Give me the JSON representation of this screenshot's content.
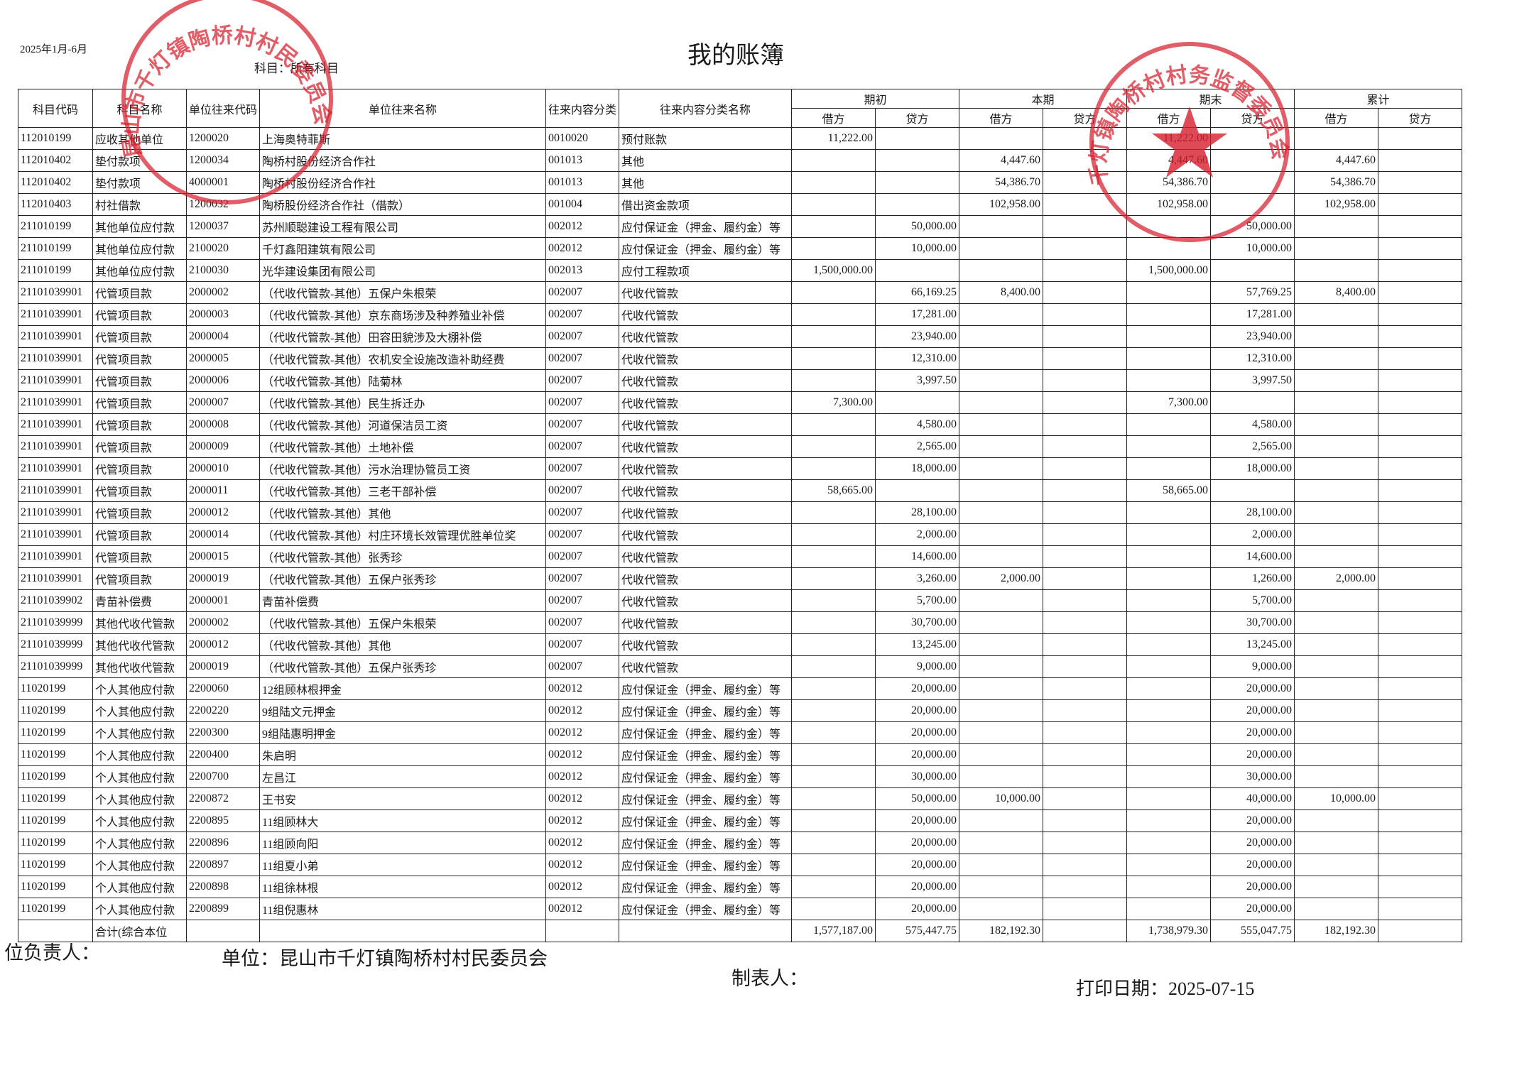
{
  "header": {
    "date_range": "2025年1月-6月",
    "title": "我的账簿",
    "subject": "科目：所有科目"
  },
  "table": {
    "columns": [
      "科目代码",
      "科目名称",
      "单位往来代码",
      "单位往来名称",
      "往来内容分类",
      "往来内容分类名称"
    ],
    "groups": [
      "期初",
      "本期",
      "期末",
      "累计"
    ],
    "sub": [
      "借方",
      "贷方"
    ],
    "rows": [
      {
        "code": "112010199",
        "subject": "应收其他单位",
        "unit_code": "1200020",
        "unit_name": "上海奥特菲斯",
        "cat_code": "0010020",
        "cat_name": "预付账款",
        "open_dr": "11,222.00",
        "close_dr": "11,222.00"
      },
      {
        "code": "112010402",
        "subject": "垫付款项",
        "unit_code": "1200034",
        "unit_name": "陶桥村股份经济合作社",
        "cat_code": "001013",
        "cat_name": "其他",
        "period_dr": "4,447.60",
        "close_dr": "4,447.60",
        "cum_dr": "4,447.60"
      },
      {
        "code": "112010402",
        "subject": "垫付款项",
        "unit_code": "4000001",
        "unit_name": "陶桥村股份经济合作社",
        "cat_code": "001013",
        "cat_name": "其他",
        "period_dr": "54,386.70",
        "close_dr": "54,386.70",
        "cum_dr": "54,386.70"
      },
      {
        "code": "112010403",
        "subject": "村社借款",
        "unit_code": "1200032",
        "unit_name": "陶桥股份经济合作社（借款）",
        "cat_code": "001004",
        "cat_name": "借出资金款项",
        "period_dr": "102,958.00",
        "close_dr": "102,958.00",
        "cum_dr": "102,958.00"
      },
      {
        "code": "211010199",
        "subject": "其他单位应付款",
        "unit_code": "1200037",
        "unit_name": "苏州顺聪建设工程有限公司",
        "cat_code": "002012",
        "cat_name": "应付保证金（押金、履约金）等",
        "open_cr": "50,000.00",
        "close_cr": "50,000.00"
      },
      {
        "code": "211010199",
        "subject": "其他单位应付款",
        "unit_code": "2100020",
        "unit_name": "千灯鑫阳建筑有限公司",
        "cat_code": "002012",
        "cat_name": "应付保证金（押金、履约金）等",
        "open_cr": "10,000.00",
        "close_cr": "10,000.00"
      },
      {
        "code": "211010199",
        "subject": "其他单位应付款",
        "unit_code": "2100030",
        "unit_name": "光华建设集团有限公司",
        "cat_code": "002013",
        "cat_name": "应付工程款项",
        "open_dr": "1,500,000.00",
        "close_dr": "1,500,000.00"
      },
      {
        "code": "21101039901",
        "subject": "代管项目款",
        "unit_code": "2000002",
        "unit_name": "（代收代管款-其他）五保户朱根荣",
        "cat_code": "002007",
        "cat_name": "代收代管款",
        "open_cr": "66,169.25",
        "period_dr": "8,400.00",
        "close_cr": "57,769.25",
        "cum_dr": "8,400.00"
      },
      {
        "code": "21101039901",
        "subject": "代管项目款",
        "unit_code": "2000003",
        "unit_name": "（代收代管款-其他）京东商场涉及种养殖业补偿",
        "cat_code": "002007",
        "cat_name": "代收代管款",
        "open_cr": "17,281.00",
        "close_cr": "17,281.00"
      },
      {
        "code": "21101039901",
        "subject": "代管项目款",
        "unit_code": "2000004",
        "unit_name": "（代收代管款-其他）田容田貌涉及大棚补偿",
        "cat_code": "002007",
        "cat_name": "代收代管款",
        "open_cr": "23,940.00",
        "close_cr": "23,940.00"
      },
      {
        "code": "21101039901",
        "subject": "代管项目款",
        "unit_code": "2000005",
        "unit_name": "（代收代管款-其他）农机安全设施改造补助经费",
        "cat_code": "002007",
        "cat_name": "代收代管款",
        "open_cr": "12,310.00",
        "close_cr": "12,310.00"
      },
      {
        "code": "21101039901",
        "subject": "代管项目款",
        "unit_code": "2000006",
        "unit_name": "（代收代管款-其他）陆菊林",
        "cat_code": "002007",
        "cat_name": "代收代管款",
        "open_cr": "3,997.50",
        "close_cr": "3,997.50"
      },
      {
        "code": "21101039901",
        "subject": "代管项目款",
        "unit_code": "2000007",
        "unit_name": "（代收代管款-其他）民生拆迁办",
        "cat_code": "002007",
        "cat_name": "代收代管款",
        "open_dr": "7,300.00",
        "close_dr": "7,300.00"
      },
      {
        "code": "21101039901",
        "subject": "代管项目款",
        "unit_code": "2000008",
        "unit_name": "（代收代管款-其他）河道保洁员工资",
        "cat_code": "002007",
        "cat_name": "代收代管款",
        "open_cr": "4,580.00",
        "close_cr": "4,580.00"
      },
      {
        "code": "21101039901",
        "subject": "代管项目款",
        "unit_code": "2000009",
        "unit_name": "（代收代管款-其他）土地补偿",
        "cat_code": "002007",
        "cat_name": "代收代管款",
        "open_cr": "2,565.00",
        "close_cr": "2,565.00"
      },
      {
        "code": "21101039901",
        "subject": "代管项目款",
        "unit_code": "2000010",
        "unit_name": "（代收代管款-其他）污水治理协管员工资",
        "cat_code": "002007",
        "cat_name": "代收代管款",
        "open_cr": "18,000.00",
        "close_cr": "18,000.00"
      },
      {
        "code": "21101039901",
        "subject": "代管项目款",
        "unit_code": "2000011",
        "unit_name": "（代收代管款-其他）三老干部补偿",
        "cat_code": "002007",
        "cat_name": "代收代管款",
        "open_dr": "58,665.00",
        "close_dr": "58,665.00"
      },
      {
        "code": "21101039901",
        "subject": "代管项目款",
        "unit_code": "2000012",
        "unit_name": "（代收代管款-其他）其他",
        "cat_code": "002007",
        "cat_name": "代收代管款",
        "open_cr": "28,100.00",
        "close_cr": "28,100.00"
      },
      {
        "code": "21101039901",
        "subject": "代管项目款",
        "unit_code": "2000014",
        "unit_name": "（代收代管款-其他）村庄环境长效管理优胜单位奖",
        "cat_code": "002007",
        "cat_name": "代收代管款",
        "open_cr": "2,000.00",
        "close_cr": "2,000.00"
      },
      {
        "code": "21101039901",
        "subject": "代管项目款",
        "unit_code": "2000015",
        "unit_name": "（代收代管款-其他）张秀珍",
        "cat_code": "002007",
        "cat_name": "代收代管款",
        "open_cr": "14,600.00",
        "close_cr": "14,600.00"
      },
      {
        "code": "21101039901",
        "subject": "代管项目款",
        "unit_code": "2000019",
        "unit_name": "（代收代管款-其他）五保户张秀珍",
        "cat_code": "002007",
        "cat_name": "代收代管款",
        "open_cr": "3,260.00",
        "period_dr": "2,000.00",
        "close_cr": "1,260.00",
        "cum_dr": "2,000.00"
      },
      {
        "code": "21101039902",
        "subject": "青苗补偿费",
        "unit_code": "2000001",
        "unit_name": "青苗补偿费",
        "cat_code": "002007",
        "cat_name": "代收代管款",
        "open_cr": "5,700.00",
        "close_cr": "5,700.00"
      },
      {
        "code": "21101039999",
        "subject": "其他代收代管款",
        "unit_code": "2000002",
        "unit_name": "（代收代管款-其他）五保户朱根荣",
        "cat_code": "002007",
        "cat_name": "代收代管款",
        "open_cr": "30,700.00",
        "close_cr": "30,700.00"
      },
      {
        "code": "21101039999",
        "subject": "其他代收代管款",
        "unit_code": "2000012",
        "unit_name": "（代收代管款-其他）其他",
        "cat_code": "002007",
        "cat_name": "代收代管款",
        "open_cr": "13,245.00",
        "close_cr": "13,245.00"
      },
      {
        "code": "21101039999",
        "subject": "其他代收代管款",
        "unit_code": "2000019",
        "unit_name": "（代收代管款-其他）五保户张秀珍",
        "cat_code": "002007",
        "cat_name": "代收代管款",
        "open_cr": "9,000.00",
        "close_cr": "9,000.00"
      },
      {
        "code": "11020199",
        "subject": "个人其他应付款",
        "unit_code": "2200060",
        "unit_name": "12组顾林根押金",
        "cat_code": "002012",
        "cat_name": "应付保证金（押金、履约金）等",
        "open_cr": "20,000.00",
        "close_cr": "20,000.00"
      },
      {
        "code": "11020199",
        "subject": "个人其他应付款",
        "unit_code": "2200220",
        "unit_name": "9组陆文元押金",
        "cat_code": "002012",
        "cat_name": "应付保证金（押金、履约金）等",
        "open_cr": "20,000.00",
        "close_cr": "20,000.00"
      },
      {
        "code": "11020199",
        "subject": "个人其他应付款",
        "unit_code": "2200300",
        "unit_name": "9组陆惠明押金",
        "cat_code": "002012",
        "cat_name": "应付保证金（押金、履约金）等",
        "open_cr": "20,000.00",
        "close_cr": "20,000.00"
      },
      {
        "code": "11020199",
        "subject": "个人其他应付款",
        "unit_code": "2200400",
        "unit_name": "朱启明",
        "cat_code": "002012",
        "cat_name": "应付保证金（押金、履约金）等",
        "open_cr": "20,000.00",
        "close_cr": "20,000.00"
      },
      {
        "code": "11020199",
        "subject": "个人其他应付款",
        "unit_code": "2200700",
        "unit_name": "左昌江",
        "cat_code": "002012",
        "cat_name": "应付保证金（押金、履约金）等",
        "open_cr": "30,000.00",
        "close_cr": "30,000.00"
      },
      {
        "code": "11020199",
        "subject": "个人其他应付款",
        "unit_code": "2200872",
        "unit_name": "王书安",
        "cat_code": "002012",
        "cat_name": "应付保证金（押金、履约金）等",
        "open_cr": "50,000.00",
        "period_dr": "10,000.00",
        "close_cr": "40,000.00",
        "cum_dr": "10,000.00"
      },
      {
        "code": "11020199",
        "subject": "个人其他应付款",
        "unit_code": "2200895",
        "unit_name": "11组顾林大",
        "cat_code": "002012",
        "cat_name": "应付保证金（押金、履约金）等",
        "open_cr": "20,000.00",
        "close_cr": "20,000.00"
      },
      {
        "code": "11020199",
        "subject": "个人其他应付款",
        "unit_code": "2200896",
        "unit_name": "11组顾向阳",
        "cat_code": "002012",
        "cat_name": "应付保证金（押金、履约金）等",
        "open_cr": "20,000.00",
        "close_cr": "20,000.00"
      },
      {
        "code": "11020199",
        "subject": "个人其他应付款",
        "unit_code": "2200897",
        "unit_name": "11组夏小弟",
        "cat_code": "002012",
        "cat_name": "应付保证金（押金、履约金）等",
        "open_cr": "20,000.00",
        "close_cr": "20,000.00"
      },
      {
        "code": "11020199",
        "subject": "个人其他应付款",
        "unit_code": "2200898",
        "unit_name": "11组徐林根",
        "cat_code": "002012",
        "cat_name": "应付保证金（押金、履约金）等",
        "open_cr": "20,000.00",
        "close_cr": "20,000.00"
      },
      {
        "code": "11020199",
        "subject": "个人其他应付款",
        "unit_code": "2200899",
        "unit_name": "11组倪惠林",
        "cat_code": "002012",
        "cat_name": "应付保证金（押金、履约金）等",
        "open_cr": "20,000.00",
        "close_cr": "20,000.00"
      }
    ],
    "total": {
      "label": "合计(综合本位",
      "open_dr": "1,577,187.00",
      "open_cr": "575,447.75",
      "period_dr": "182,192.30",
      "close_dr": "1,738,979.30",
      "close_cr": "555,047.75",
      "cum_dr": "182,192.30"
    }
  },
  "footer": {
    "leader": "位负责人：",
    "unit": "单位：昆山市千灯镇陶桥村村民委员会",
    "maker": "制表人：",
    "print_date": "打印日期：2025-07-15"
  },
  "stamps": [
    "昆山市千灯镇陶桥村村民委员会",
    "千灯镇陶桥村村务监督委员会"
  ]
}
